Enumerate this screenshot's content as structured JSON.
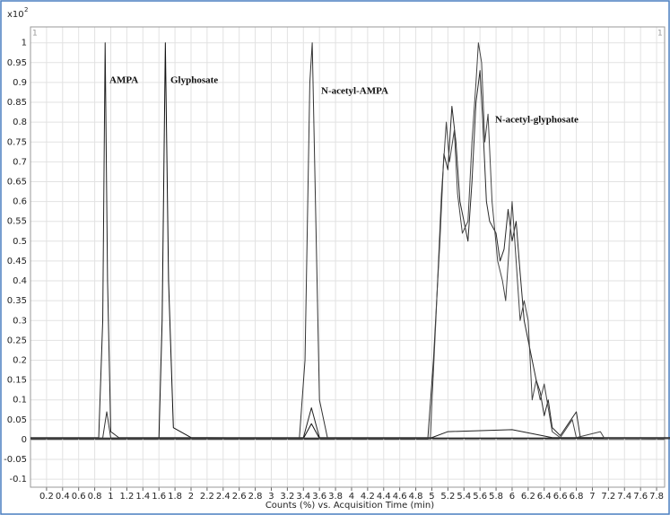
{
  "chart_data": {
    "type": "line",
    "x_label": "Counts (%) vs. Acquisition Time (min)",
    "y_scale_label": {
      "base": "x10",
      "exponent": "2"
    },
    "panel_labels": [
      "1",
      "1"
    ],
    "annotations": [
      "AMPA",
      "Glyphosate",
      "N-acetyl-AMPA",
      "N-acetyl-glyphosate"
    ],
    "xlim": [
      0,
      7.9
    ],
    "ylim": [
      -0.12,
      1.04
    ],
    "xticks": [
      0.2,
      0.4,
      0.6,
      0.8,
      1,
      1.2,
      1.4,
      1.6,
      1.8,
      2,
      2.2,
      2.4,
      2.6,
      2.8,
      3,
      3.2,
      3.4,
      3.6,
      3.8,
      4,
      4.2,
      4.4,
      4.6,
      4.8,
      5,
      5.2,
      5.4,
      5.6,
      5.8,
      6,
      6.2,
      6.4,
      6.6,
      6.8,
      7,
      7.2,
      7.4,
      7.6,
      7.8
    ],
    "yticks": [
      -0.1,
      -0.05,
      0,
      0.05,
      0.1,
      0.15,
      0.2,
      0.25,
      0.3,
      0.35,
      0.4,
      0.45,
      0.5,
      0.55,
      0.6,
      0.65,
      0.7,
      0.75,
      0.8,
      0.85,
      0.9,
      0.95,
      1
    ],
    "grid": true,
    "series": [
      {
        "color": "#222222",
        "x": [
          0,
          0.85,
          0.9,
          0.93,
          0.96,
          1.0,
          1.1,
          3.4,
          3.5,
          3.6,
          5,
          5.2,
          6,
          6.5,
          8
        ],
        "values": [
          0.005,
          0.005,
          0.3,
          1.0,
          0.4,
          0.02,
          0.005,
          0.005,
          0.08,
          0.005,
          0.005,
          0.02,
          0.025,
          0.005,
          0.005
        ]
      },
      {
        "color": "#111111",
        "x": [
          0,
          1.6,
          1.64,
          1.68,
          1.72,
          1.78,
          2,
          3.4,
          3.5,
          3.6,
          8
        ],
        "values": [
          0.003,
          0.003,
          0.3,
          1.0,
          0.4,
          0.03,
          0.005,
          0.003,
          0.04,
          0.003,
          0.003
        ]
      },
      {
        "color": "#333333",
        "x": [
          0,
          0.9,
          0.95,
          1.0,
          3.35,
          3.42,
          3.48,
          3.51,
          3.55,
          3.6,
          3.7,
          8
        ],
        "values": [
          0.004,
          0.004,
          0.07,
          0.004,
          0.004,
          0.2,
          0.9,
          1.0,
          0.6,
          0.1,
          0.004,
          0.004
        ]
      },
      {
        "color": "#2a2a2a",
        "x": [
          0,
          4.95,
          5.02,
          5.1,
          5.15,
          5.2,
          5.25,
          5.3,
          5.35,
          5.4,
          5.45,
          5.5,
          5.55,
          5.6,
          5.63,
          5.68,
          5.72,
          5.8,
          5.85,
          5.9,
          5.95,
          6.0,
          6.05,
          6.1,
          6.15,
          6.2,
          6.25,
          6.3,
          6.35,
          6.4,
          6.45,
          6.5,
          6.6,
          6.8,
          6.85,
          8
        ],
        "values": [
          0.002,
          0.002,
          0.2,
          0.5,
          0.72,
          0.68,
          0.84,
          0.75,
          0.6,
          0.55,
          0.5,
          0.65,
          0.85,
          0.93,
          0.82,
          0.6,
          0.55,
          0.52,
          0.45,
          0.48,
          0.58,
          0.5,
          0.55,
          0.42,
          0.3,
          0.25,
          0.2,
          0.15,
          0.12,
          0.06,
          0.1,
          0.03,
          0.01,
          0.07,
          0.005,
          0.002
        ]
      },
      {
        "color": "#444444",
        "x": [
          0,
          4.98,
          5.05,
          5.12,
          5.18,
          5.22,
          5.28,
          5.32,
          5.38,
          5.45,
          5.5,
          5.55,
          5.58,
          5.62,
          5.66,
          5.7,
          5.75,
          5.82,
          5.88,
          5.92,
          6.0,
          6.05,
          6.1,
          6.15,
          6.2,
          6.25,
          6.3,
          6.35,
          6.4,
          6.45,
          6.5,
          6.6,
          6.75,
          6.8,
          7.1,
          7.15,
          8
        ],
        "values": [
          0.004,
          0.004,
          0.3,
          0.62,
          0.8,
          0.7,
          0.78,
          0.62,
          0.52,
          0.55,
          0.75,
          0.9,
          1.0,
          0.95,
          0.75,
          0.82,
          0.6,
          0.45,
          0.4,
          0.35,
          0.6,
          0.45,
          0.3,
          0.35,
          0.3,
          0.1,
          0.15,
          0.1,
          0.14,
          0.08,
          0.02,
          0.005,
          0.05,
          0.005,
          0.02,
          0.003,
          0.003
        ]
      }
    ]
  }
}
